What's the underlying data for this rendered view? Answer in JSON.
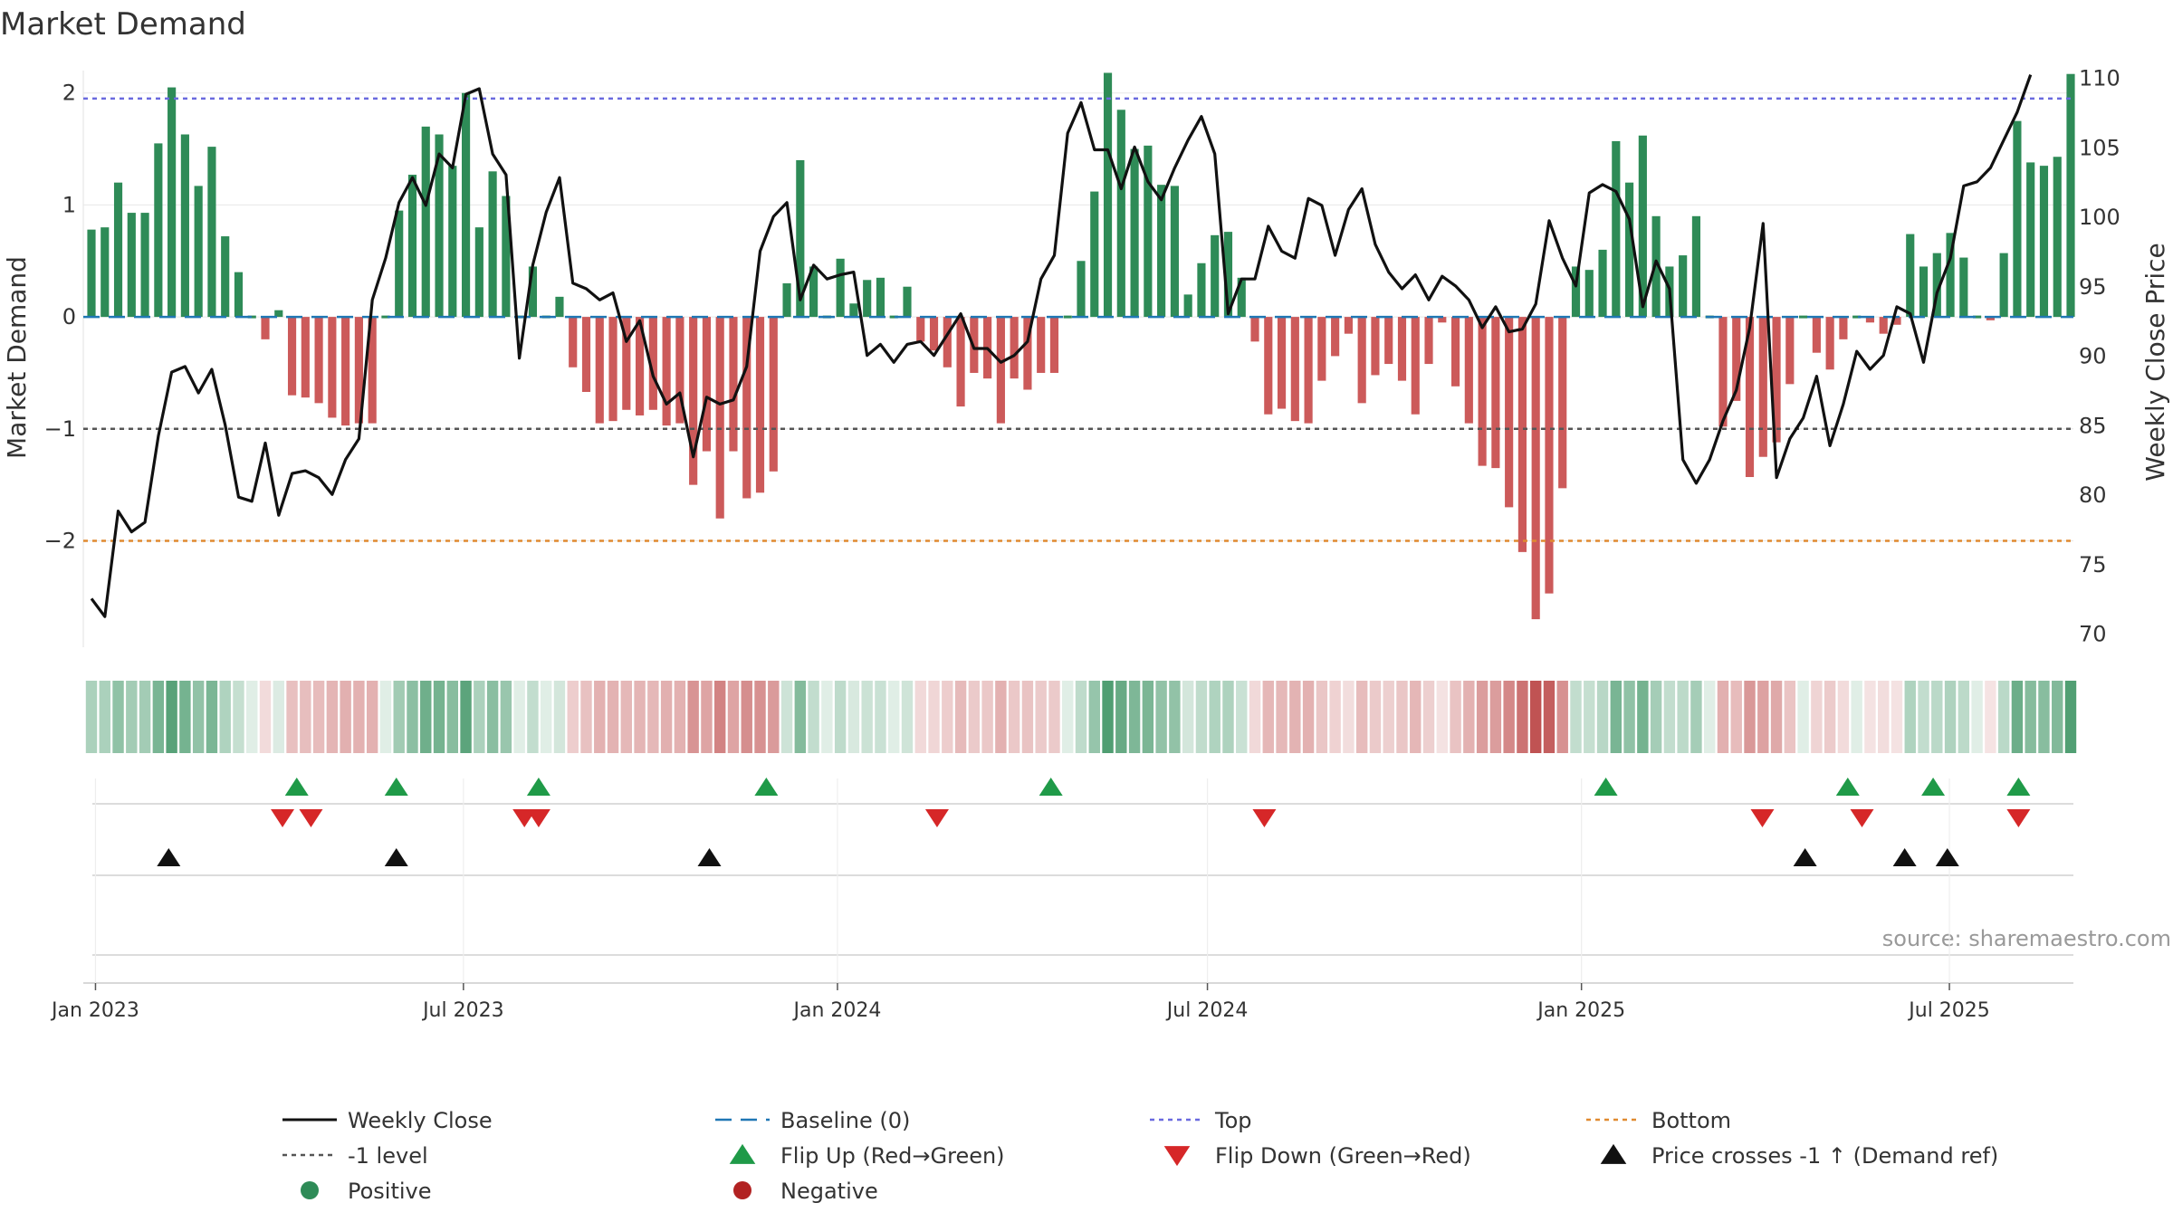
{
  "chart_data": {
    "type": "bar+line",
    "title": "Market Demand",
    "ylabel_left": "Market Demand",
    "ylabel_right": "Weekly Close Price",
    "ylim_left": [
      -2.95,
      2.2
    ],
    "ylim_right": [
      69,
      110.5
    ],
    "left_ticks": [
      2,
      1,
      0,
      -1,
      -2
    ],
    "left_tick_labels": [
      "2",
      "1",
      "0",
      "−1",
      "−2"
    ],
    "right_ticks": [
      110,
      105,
      100,
      95,
      90,
      85,
      80,
      75,
      70
    ],
    "x_start": "2022-12-26",
    "x_end": "2025-08-31",
    "x_ticks": [
      "2023-01-01",
      "2023-07-01",
      "2024-01-01",
      "2024-07-01",
      "2025-01-01",
      "2025-07-01"
    ],
    "x_tick_labels": [
      "Jan 2023",
      "Jul 2023",
      "Jan 2024",
      "Jul 2024",
      "Jan 2025",
      "Jul 2025"
    ],
    "reference_lines": [
      {
        "name": "Baseline (0)",
        "y": 0,
        "color": "#1f77b4"
      },
      {
        "name": "Top",
        "y": 1.95,
        "color": "#6a6adf"
      },
      {
        "name": "-1 level",
        "y": -1,
        "color": "#555555"
      },
      {
        "name": "Bottom",
        "y": -2,
        "color": "#e08a30"
      }
    ],
    "demand": [
      0.78,
      0.8,
      1.2,
      0.93,
      0.93,
      1.55,
      2.05,
      1.63,
      1.17,
      1.52,
      0.72,
      0.4,
      0.0,
      -0.2,
      0.06,
      -0.7,
      -0.72,
      -0.77,
      -0.9,
      -0.97,
      -0.95,
      -0.95,
      0.0,
      0.95,
      1.27,
      1.7,
      1.63,
      1.35,
      2.0,
      0.8,
      1.3,
      1.08,
      0.0,
      0.45,
      0.0,
      0.18,
      -0.45,
      -0.67,
      -0.95,
      -0.93,
      -0.83,
      -0.88,
      -0.83,
      -0.97,
      -0.95,
      -1.5,
      -1.2,
      -1.8,
      -1.2,
      -1.62,
      -1.57,
      -1.38,
      0.3,
      1.4,
      0.45,
      0.0,
      0.52,
      0.12,
      0.33,
      0.35,
      0.0,
      0.27,
      -0.22,
      -0.3,
      -0.45,
      -0.8,
      -0.5,
      -0.55,
      -0.95,
      -0.55,
      -0.65,
      -0.5,
      -0.5,
      0.0,
      0.5,
      1.12,
      2.18,
      1.85,
      1.5,
      1.53,
      1.18,
      1.17,
      0.2,
      0.48,
      0.73,
      0.76,
      0.35,
      -0.22,
      -0.87,
      -0.82,
      -0.93,
      -0.95,
      -0.57,
      -0.35,
      -0.15,
      -0.77,
      -0.52,
      -0.42,
      -0.57,
      -0.87,
      -0.42,
      -0.05,
      -0.62,
      -0.95,
      -1.33,
      -1.35,
      -1.7,
      -2.1,
      -2.7,
      -2.47,
      -1.53,
      0.45,
      0.42,
      0.6,
      1.57,
      1.2,
      1.62,
      0.9,
      0.45,
      0.55,
      0.9,
      0.0,
      -0.98,
      -0.75,
      -1.43,
      -1.25,
      -1.12,
      -0.6,
      0.0,
      -0.32,
      -0.47,
      -0.2,
      0.0,
      -0.05,
      -0.15,
      -0.07,
      0.74,
      0.45,
      0.57,
      0.75,
      0.53,
      0.0,
      -0.03,
      0.57,
      1.75,
      1.38,
      1.35,
      1.43,
      2.17
    ],
    "weekly_close": [
      72.5,
      71.2,
      78.8,
      77.3,
      78.0,
      84.2,
      88.8,
      89.2,
      87.3,
      89.0,
      85.0,
      79.8,
      79.5,
      83.7,
      78.5,
      81.5,
      81.7,
      81.2,
      80.0,
      82.5,
      84.0,
      94.0,
      97.0,
      101.0,
      102.8,
      100.8,
      104.5,
      103.5,
      108.8,
      109.2,
      104.5,
      103.0,
      89.8,
      96.5,
      100.3,
      102.8,
      95.2,
      94.8,
      94.0,
      94.5,
      91.0,
      92.5,
      88.5,
      86.5,
      87.3,
      82.7,
      87.0,
      86.5,
      86.8,
      89.2,
      97.5,
      100.0,
      101.0,
      94.0,
      96.5,
      95.5,
      95.8,
      96.0,
      90.0,
      90.8,
      89.5,
      90.8,
      91.0,
      90.0,
      91.5,
      93.0,
      90.5,
      90.5,
      89.5,
      90.0,
      91.0,
      95.5,
      97.2,
      106.0,
      108.2,
      104.8,
      104.8,
      102.0,
      105.0,
      102.5,
      101.2,
      103.5,
      105.5,
      107.2,
      104.5,
      93.0,
      95.5,
      95.5,
      99.3,
      97.5,
      97.0,
      101.3,
      100.8,
      97.2,
      100.5,
      102.0,
      98.0,
      96.0,
      94.8,
      95.8,
      94.0,
      95.7,
      95.0,
      94.0,
      92.0,
      93.5,
      91.7,
      91.9,
      93.7,
      99.7,
      97.0,
      95.0,
      101.7,
      102.3,
      101.8,
      99.8,
      93.5,
      96.8,
      94.8,
      82.5,
      80.8,
      82.5,
      85.3,
      87.5,
      92.0,
      99.5,
      81.2,
      84.0,
      85.5,
      88.5,
      83.5,
      86.5,
      90.3,
      89.0,
      90.0,
      93.5,
      93.0,
      89.5,
      94.5,
      97.0,
      102.2,
      102.5,
      103.5,
      105.5,
      107.5,
      110.2
    ],
    "heatstrip": {
      "row": "demand colour strip",
      "positive_color": "#2e8b57",
      "negative_color": "#c05353"
    },
    "markers": {
      "flip_up": [
        "2023-04-10",
        "2023-05-29",
        "2023-08-07",
        "2023-11-27",
        "2024-04-15",
        "2025-01-13",
        "2025-05-12",
        "2025-06-23",
        "2025-08-04"
      ],
      "flip_down": [
        "2023-04-03",
        "2023-04-17",
        "2023-07-31",
        "2023-08-07",
        "2024-02-19",
        "2024-07-29",
        "2025-03-31",
        "2025-05-19",
        "2025-08-04"
      ],
      "price_cross_up": [
        "2023-02-06",
        "2023-05-29",
        "2023-10-30",
        "2025-04-21",
        "2025-06-09",
        "2025-06-30"
      ]
    },
    "colors": {
      "positive": "#2e8b57",
      "negative": "#cc5a5a",
      "price_line": "#111111",
      "flip_up": "#1f9a48",
      "flip_down": "#d62728",
      "cross": "#111111",
      "grid": "#e8e8e8"
    },
    "source_note": "source: sharemaestro.com",
    "legend": [
      {
        "label": "Weekly Close",
        "symbol": "solid-line",
        "color": "#111111"
      },
      {
        "label": "Baseline (0)",
        "symbol": "dash-line",
        "color": "#1f77b4"
      },
      {
        "label": "Top",
        "symbol": "dot-line",
        "color": "#6a6adf"
      },
      {
        "label": "Bottom",
        "symbol": "dot-line",
        "color": "#e08a30"
      },
      {
        "label": "-1 level",
        "symbol": "dot-line",
        "color": "#555555"
      },
      {
        "label": "Flip Up (Red→Green)",
        "symbol": "triangle-up",
        "color": "#1f9a48"
      },
      {
        "label": "Flip Down (Green→Red)",
        "symbol": "triangle-down",
        "color": "#d62728"
      },
      {
        "label": "Price crosses -1 ↑ (Demand ref)",
        "symbol": "triangle-up",
        "color": "#111111"
      },
      {
        "label": "Positive",
        "symbol": "circle",
        "color": "#2e8b57"
      },
      {
        "label": "Negative",
        "symbol": "circle",
        "color": "#b22222"
      }
    ]
  }
}
